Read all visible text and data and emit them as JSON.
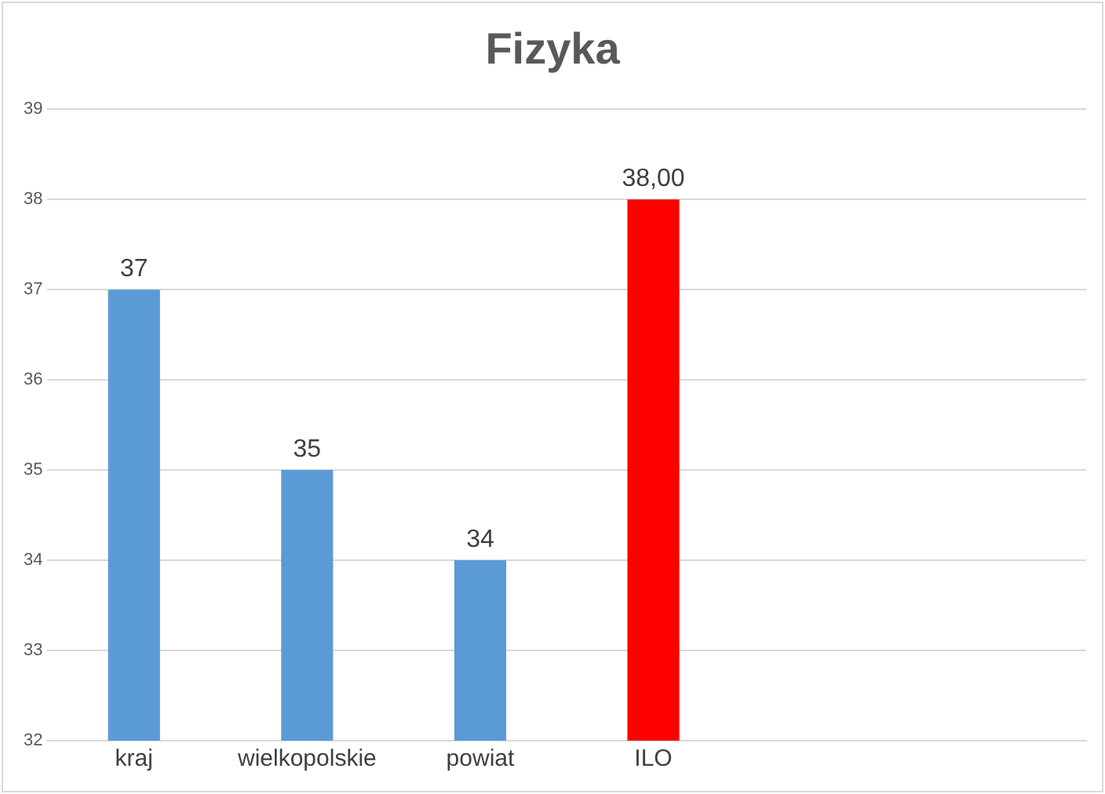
{
  "chart_data": {
    "type": "bar",
    "title": "Fizyka",
    "categories": [
      "kraj",
      "wielkopolskie",
      "powiat",
      "ILO",
      null,
      null
    ],
    "values": [
      37,
      35,
      34,
      38,
      null,
      null
    ],
    "colors": [
      "#5b9bd5",
      "#5b9bd5",
      "#5b9bd5",
      "#ff0000",
      "#5b9bd5",
      "#5b9bd5"
    ],
    "value_labels": [
      "37",
      "35",
      "34",
      "38,00",
      null,
      null
    ],
    "ylim": [
      32,
      39
    ],
    "yticks": [
      32,
      33,
      34,
      35,
      36,
      37,
      38,
      39
    ],
    "grid": "y",
    "legend": false
  }
}
